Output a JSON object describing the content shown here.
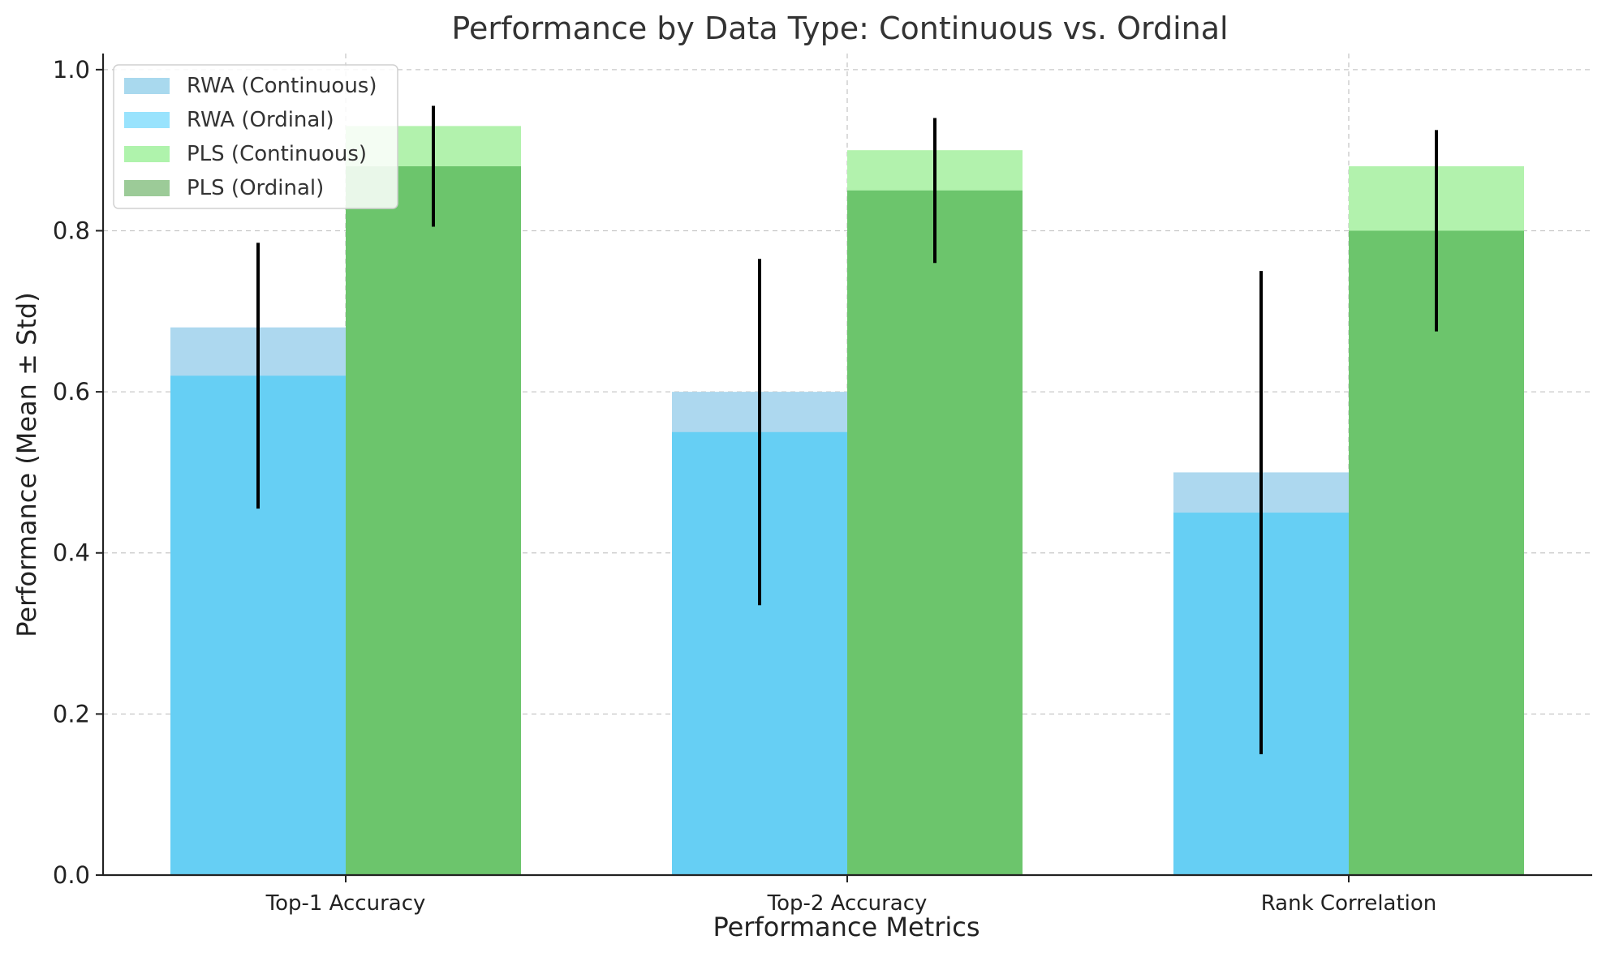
{
  "chart_data": {
    "type": "bar",
    "title": "Performance by Data Type: Continuous vs. Ordinal",
    "xlabel": "Performance Metrics",
    "ylabel": "Performance (Mean ± Std)",
    "ylim": [
      0,
      1.02
    ],
    "yticks": [
      0.0,
      0.2,
      0.4,
      0.6,
      0.8,
      1.0
    ],
    "ytick_labels": [
      "0.0",
      "0.2",
      "0.4",
      "0.6",
      "0.8",
      "1.0"
    ],
    "categories": [
      "Top-1 Accuracy",
      "Top-2 Accuracy",
      "Rank Correlation"
    ],
    "grid": true,
    "legend_placement": "upper-left",
    "series": [
      {
        "name": "RWA (Continuous)",
        "group": "RWA",
        "values": [
          0.68,
          0.6,
          0.5
        ],
        "color": "#add8ef",
        "std": null
      },
      {
        "name": "RWA (Ordinal)",
        "group": "RWA",
        "values": [
          0.62,
          0.55,
          0.45
        ],
        "color": "#66cff4",
        "std": [
          0.165,
          0.215,
          0.3
        ]
      },
      {
        "name": "PLS (Continuous)",
        "group": "PLS",
        "values": [
          0.93,
          0.9,
          0.88
        ],
        "color": "#b2f2ad",
        "std": null
      },
      {
        "name": "PLS (Ordinal)",
        "group": "PLS",
        "values": [
          0.88,
          0.85,
          0.8
        ],
        "color": "#6cc56c",
        "std": [
          0.075,
          0.09,
          0.125
        ]
      }
    ],
    "legend_colors": [
      "#a9d9ee",
      "#99e3fd",
      "#aff3ac",
      "#9ccb98"
    ],
    "errorbar_color": "#000000"
  }
}
